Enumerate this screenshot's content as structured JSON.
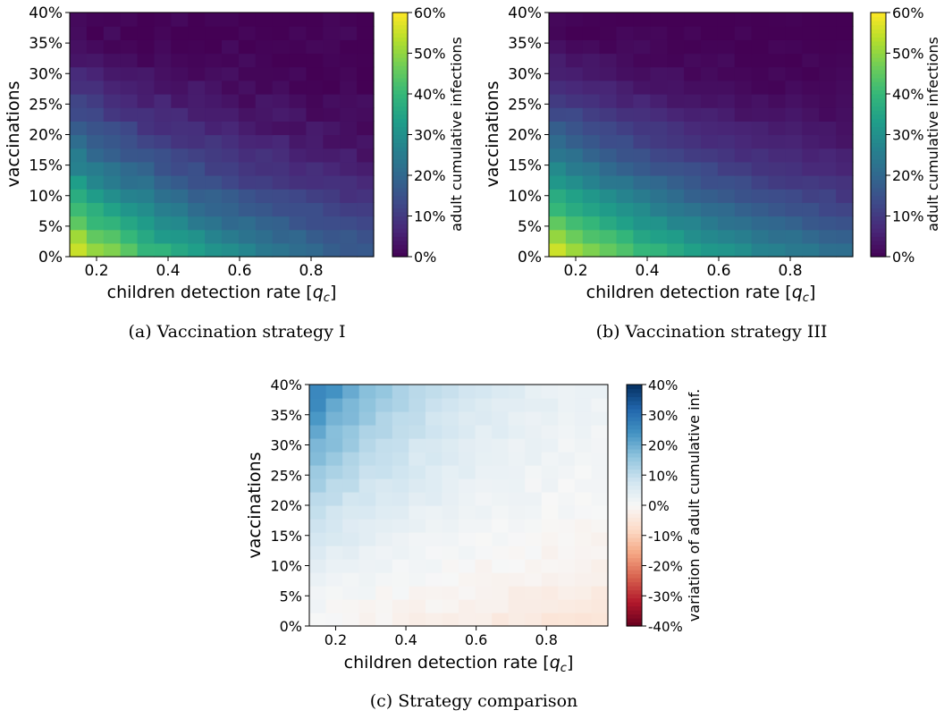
{
  "chart_data": [
    {
      "type": "heatmap",
      "caption": "(a) Vaccination strategy I",
      "xlabel": "children detection rate [",
      "xlabel_sym": "q",
      "xlabel_sub": "c",
      "xlabel_end": "]",
      "ylabel": "vaccinations",
      "x_ticks": [
        "0.2",
        "0.4",
        "0.6",
        "0.8"
      ],
      "x_tick_values": [
        0.2,
        0.4,
        0.6,
        0.8
      ],
      "y_ticks": [
        "0%",
        "5%",
        "10%",
        "15%",
        "20%",
        "25%",
        "30%",
        "35%",
        "40%"
      ],
      "colorbar_label": "adult cumulative infections",
      "colorbar_ticks": [
        "0%",
        "10%",
        "20%",
        "30%",
        "40%",
        "50%",
        "60%"
      ],
      "colormap": "viridis",
      "value_range": [
        0,
        0.6
      ],
      "x_range": [
        0.125,
        0.975
      ],
      "y_range": [
        0,
        0.4
      ],
      "grid": {
        "cols": 18,
        "rows": 18
      },
      "model": {
        "a": 0.6,
        "b": 0.52,
        "c": 0.45,
        "d": 0.95,
        "e": 0.03
      },
      "seed": 1
    },
    {
      "type": "heatmap",
      "caption": "(b) Vaccination strategy III",
      "xlabel": "children detection rate [",
      "xlabel_sym": "q",
      "xlabel_sub": "c",
      "xlabel_end": "]",
      "ylabel": "vaccinations",
      "x_ticks": [
        "0.2",
        "0.4",
        "0.6",
        "0.8"
      ],
      "x_tick_values": [
        0.2,
        0.4,
        0.6,
        0.8
      ],
      "y_ticks": [
        "0%",
        "5%",
        "10%",
        "15%",
        "20%",
        "25%",
        "30%",
        "35%",
        "40%"
      ],
      "colorbar_label": "adult cumulative infections",
      "colorbar_ticks": [
        "0%",
        "10%",
        "20%",
        "30%",
        "40%",
        "50%",
        "60%"
      ],
      "colormap": "viridis",
      "value_range": [
        0,
        0.6
      ],
      "x_range": [
        0.125,
        0.975
      ],
      "y_range": [
        0,
        0.4
      ],
      "grid": {
        "cols": 18,
        "rows": 18
      },
      "model": {
        "a": 0.6,
        "b": 0.4,
        "c": 0.25,
        "d": 0.8,
        "e": 0.02
      },
      "seed": 7
    },
    {
      "type": "heatmap",
      "caption": "(c) Strategy comparison",
      "xlabel": "children detection rate [",
      "xlabel_sym": "q",
      "xlabel_sub": "c",
      "xlabel_end": "]",
      "ylabel": "vaccinations",
      "x_ticks": [
        "0.2",
        "0.4",
        "0.6",
        "0.8"
      ],
      "x_tick_values": [
        0.2,
        0.4,
        0.6,
        0.8
      ],
      "y_ticks": [
        "0%",
        "5%",
        "10%",
        "15%",
        "20%",
        "25%",
        "30%",
        "35%",
        "40%"
      ],
      "colorbar_label": "variation of adult cumulative inf.",
      "colorbar_ticks": [
        "-40%",
        "-30%",
        "-20%",
        "-10%",
        "0%",
        "10%",
        "20%",
        "30%",
        "40%"
      ],
      "colormap": "RdBu",
      "value_range": [
        -0.4,
        0.4
      ],
      "x_range": [
        0.125,
        0.975
      ],
      "y_range": [
        0,
        0.4
      ],
      "grid": {
        "cols": 18,
        "rows": 18
      },
      "model": {
        "a": 0.3,
        "b": 0.5,
        "c": 0.55,
        "d": 1.0,
        "e": 0.02
      },
      "seed": 13
    }
  ]
}
